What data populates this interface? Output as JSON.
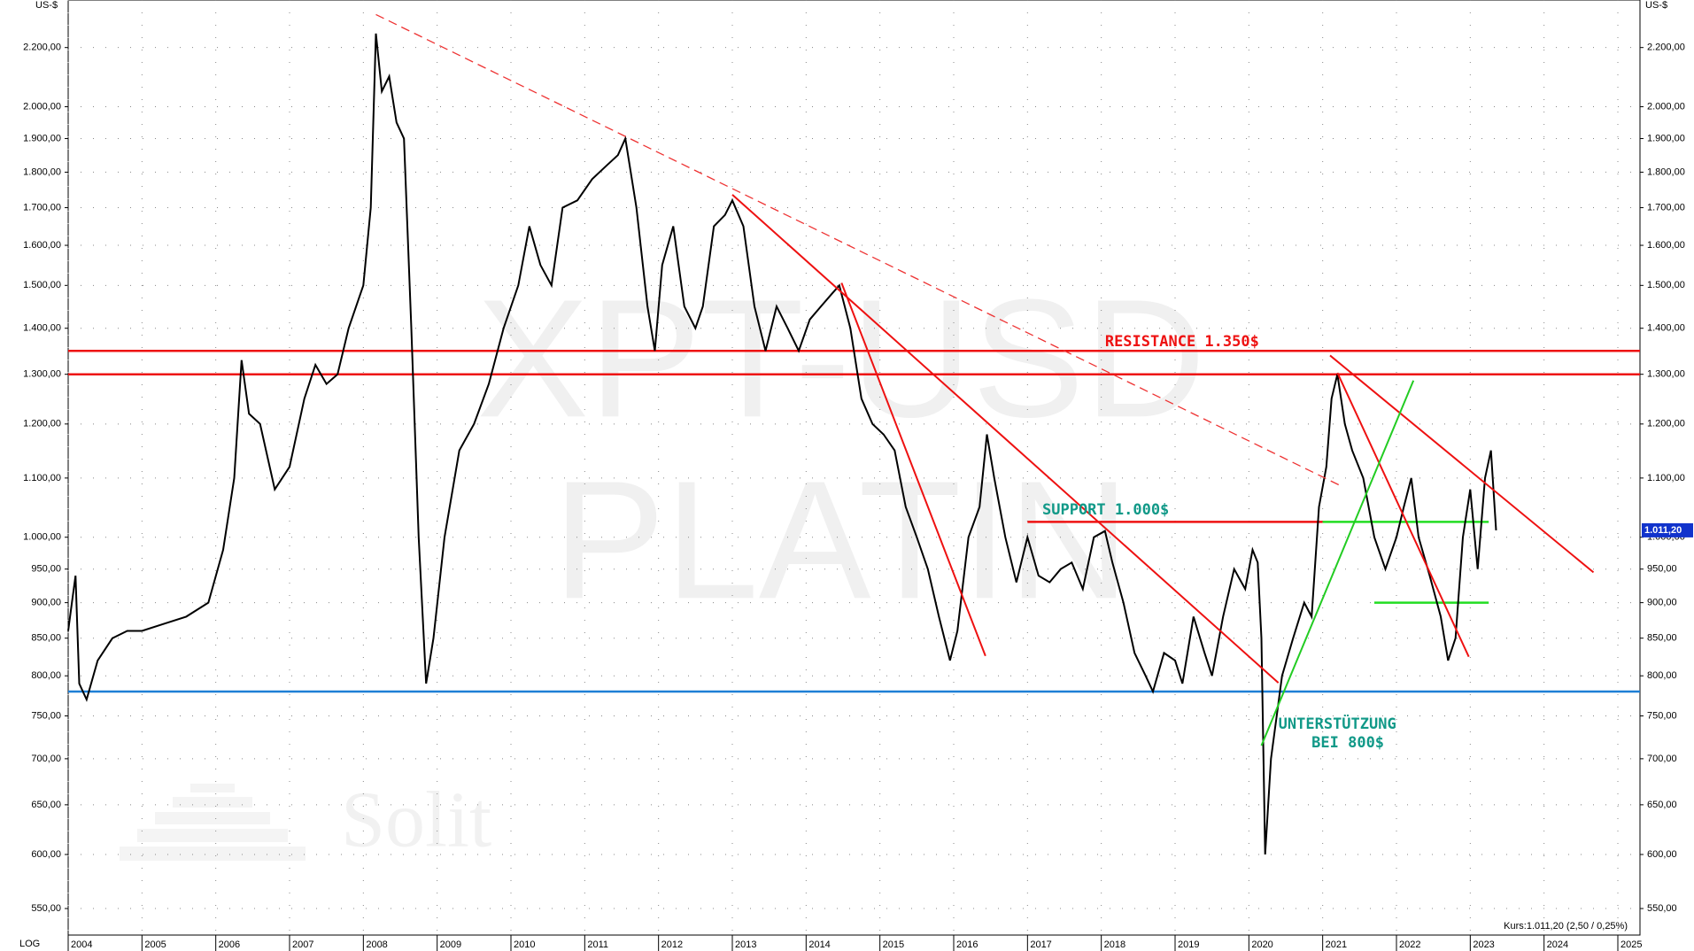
{
  "chart_data": {
    "type": "line",
    "y_label": "US-$",
    "scale_label": "LOG",
    "log_scale": true,
    "grid": true,
    "color": "#000000",
    "watermark": [
      "XPT-USD",
      "PLATIN"
    ],
    "logo": "Solit",
    "quote": "Kurs:1.011,20 (2,50 / 0,25%)",
    "last_value": 1011.2,
    "last_value_label": "1.011,20",
    "xlim": [
      2004,
      2025.3
    ],
    "xticks": [
      2004,
      2005,
      2006,
      2007,
      2008,
      2009,
      2010,
      2011,
      2012,
      2013,
      2014,
      2015,
      2016,
      2017,
      2018,
      2019,
      2020,
      2021,
      2022,
      2023,
      2024,
      2025
    ],
    "ylim": [
      527,
      2375
    ],
    "yticks": [
      {
        "value": 550,
        "label": "550,00"
      },
      {
        "value": 600,
        "label": "600,00"
      },
      {
        "value": 650,
        "label": "650,00"
      },
      {
        "value": 700,
        "label": "700,00"
      },
      {
        "value": 750,
        "label": "750,00"
      },
      {
        "value": 800,
        "label": "800,00"
      },
      {
        "value": 850,
        "label": "850,00"
      },
      {
        "value": 900,
        "label": "900,00"
      },
      {
        "value": 950,
        "label": "950,00"
      },
      {
        "value": 1000,
        "label": "1.000,00"
      },
      {
        "value": 1100,
        "label": "1.100,00"
      },
      {
        "value": 1200,
        "label": "1.200,00"
      },
      {
        "value": 1300,
        "label": "1.300,00"
      },
      {
        "value": 1400,
        "label": "1.400,00"
      },
      {
        "value": 1500,
        "label": "1.500,00"
      },
      {
        "value": 1600,
        "label": "1.600,00"
      },
      {
        "value": 1700,
        "label": "1.700,00"
      },
      {
        "value": 1800,
        "label": "1.800,00"
      },
      {
        "value": 1900,
        "label": "1.900,00"
      },
      {
        "value": 2000,
        "label": "2.000,00"
      },
      {
        "value": 2200,
        "label": "2.200,00"
      }
    ],
    "x": [
      2004.0,
      2004.05,
      2004.1,
      2004.15,
      2004.25,
      2004.4,
      2004.6,
      2004.8,
      2005.0,
      2005.3,
      2005.6,
      2005.9,
      2006.1,
      2006.25,
      2006.35,
      2006.45,
      2006.6,
      2006.8,
      2007.0,
      2007.2,
      2007.35,
      2007.5,
      2007.65,
      2007.8,
      2008.0,
      2008.1,
      2008.17,
      2008.25,
      2008.35,
      2008.45,
      2008.55,
      2008.65,
      2008.75,
      2008.85,
      2008.95,
      2009.1,
      2009.3,
      2009.5,
      2009.7,
      2009.9,
      2010.1,
      2010.25,
      2010.4,
      2010.55,
      2010.7,
      2010.9,
      2011.1,
      2011.3,
      2011.45,
      2011.55,
      2011.7,
      2011.85,
      2011.95,
      2012.05,
      2012.2,
      2012.35,
      2012.5,
      2012.6,
      2012.75,
      2012.9,
      2013.0,
      2013.15,
      2013.3,
      2013.45,
      2013.6,
      2013.75,
      2013.9,
      2014.05,
      2014.2,
      2014.35,
      2014.45,
      2014.6,
      2014.75,
      2014.9,
      2015.05,
      2015.2,
      2015.35,
      2015.5,
      2015.65,
      2015.8,
      2015.95,
      2016.05,
      2016.2,
      2016.35,
      2016.45,
      2016.55,
      2016.7,
      2016.85,
      2017.0,
      2017.15,
      2017.3,
      2017.45,
      2017.6,
      2017.75,
      2017.9,
      2018.05,
      2018.15,
      2018.3,
      2018.45,
      2018.6,
      2018.7,
      2018.85,
      2019.0,
      2019.1,
      2019.25,
      2019.4,
      2019.5,
      2019.65,
      2019.8,
      2019.95,
      2020.05,
      2020.12,
      2020.17,
      2020.22,
      2020.3,
      2020.45,
      2020.6,
      2020.75,
      2020.85,
      2020.95,
      2021.05,
      2021.12,
      2021.2,
      2021.3,
      2021.4,
      2021.55,
      2021.7,
      2021.85,
      2022.0,
      2022.1,
      2022.2,
      2022.3,
      2022.45,
      2022.6,
      2022.7,
      2022.8,
      2022.9,
      2023.0,
      2023.1,
      2023.2,
      2023.28,
      2023.35
    ],
    "values": [
      860,
      900,
      940,
      790,
      770,
      820,
      850,
      860,
      860,
      870,
      880,
      900,
      980,
      1100,
      1330,
      1220,
      1200,
      1080,
      1120,
      1250,
      1320,
      1280,
      1300,
      1400,
      1500,
      1700,
      2250,
      2050,
      2100,
      1950,
      1900,
      1400,
      1000,
      790,
      850,
      1000,
      1150,
      1200,
      1280,
      1400,
      1500,
      1650,
      1550,
      1500,
      1700,
      1720,
      1780,
      1820,
      1850,
      1900,
      1700,
      1450,
      1350,
      1550,
      1650,
      1450,
      1400,
      1450,
      1650,
      1680,
      1720,
      1650,
      1450,
      1350,
      1450,
      1400,
      1350,
      1420,
      1450,
      1480,
      1500,
      1400,
      1250,
      1200,
      1180,
      1150,
      1050,
      1000,
      950,
      880,
      820,
      860,
      1000,
      1050,
      1180,
      1100,
      1000,
      930,
      1000,
      940,
      930,
      950,
      960,
      920,
      1000,
      1010,
      960,
      900,
      830,
      800,
      780,
      830,
      820,
      790,
      880,
      830,
      800,
      880,
      950,
      920,
      980,
      960,
      850,
      600,
      700,
      800,
      850,
      900,
      880,
      1050,
      1120,
      1250,
      1300,
      1200,
      1150,
      1100,
      1000,
      950,
      1000,
      1050,
      1100,
      1000,
      940,
      880,
      820,
      850,
      1000,
      1080,
      950,
      1100,
      1150,
      1011.2
    ],
    "hlines": [
      {
        "value": 1350,
        "color": "#ee1111"
      },
      {
        "value": 1300,
        "color": "#ee1111"
      },
      {
        "value": 780,
        "color": "#1e7fd6"
      },
      {
        "value": 1025,
        "color": "#ee1111",
        "x": [
          2017.0,
          2021.0
        ]
      },
      {
        "value": 1025,
        "color": "#22dd22",
        "x": [
          2021.0,
          2023.25
        ]
      },
      {
        "value": 900,
        "color": "#22dd22",
        "x": [
          2021.7,
          2023.25
        ]
      }
    ],
    "trendlines": [
      {
        "x": [
          2008.17,
          2021.25
        ],
        "y": [
          2320,
          1086
        ],
        "color": "#ee3333",
        "dashed": true
      },
      {
        "x": [
          2013.0,
          2020.4
        ],
        "y": [
          1736,
          791
        ],
        "color": "#ee1111"
      },
      {
        "x": [
          2014.48,
          2016.43
        ],
        "y": [
          1506,
          826
        ],
        "color": "#ee1111"
      },
      {
        "x": [
          2021.1,
          2024.67
        ],
        "y": [
          1340,
          945
        ],
        "color": "#ee1111"
      },
      {
        "x": [
          2021.2,
          2022.98
        ],
        "y": [
          1303,
          825
        ],
        "color": "#ee1111"
      },
      {
        "x": [
          2020.17,
          2022.23
        ],
        "y": [
          715,
          1287
        ],
        "color": "#22cc22"
      }
    ],
    "annotations": [
      {
        "text": "RESISTANCE 1.350$",
        "x": 2018.05,
        "y": 1370,
        "color": "#ee1111"
      },
      {
        "text": "SUPPORT 1.000$",
        "x": 2017.2,
        "y": 1045,
        "color": "#119988"
      },
      {
        "text": "UNTERSTÜTZUNG",
        "x": 2020.4,
        "y": 740,
        "color": "#119988"
      },
      {
        "text": "BEI 800$",
        "x": 2020.85,
        "y": 718,
        "color": "#119988"
      }
    ]
  }
}
